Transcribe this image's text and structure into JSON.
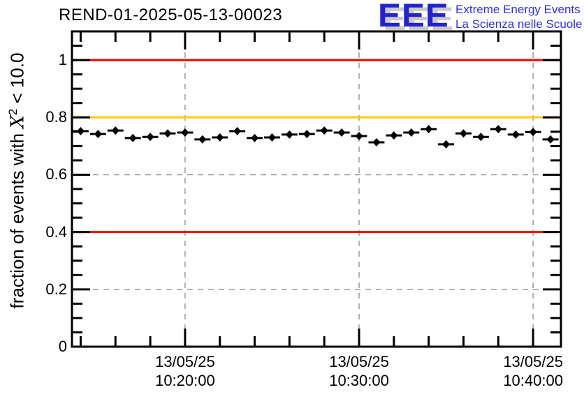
{
  "title": "REND-01-2025-05-13-00023",
  "logo": {
    "acronym": "EEE",
    "line1": "Extreme Energy Events",
    "line2": "La Scienza nelle Scuole",
    "letters_color": "#2222d2",
    "text_color": "#2e2ef0",
    "shadow_color": "#c9c9c9"
  },
  "chart_data": {
    "type": "scatter",
    "title": "REND-01-2025-05-13-00023",
    "ylabel": "fraction of events with X^2 < 10.0",
    "ylabel_parts": {
      "prefix": "fraction of events with ",
      "symbol": "X",
      "sup": "2",
      "suffix": " < 10.0"
    },
    "ylim": [
      0,
      1.1
    ],
    "y_major_tick_step": 0.2,
    "y_minor_tick_step": 0.05,
    "y_ticks": [
      {
        "value": 0,
        "label": "0"
      },
      {
        "value": 0.2,
        "label": "0.2"
      },
      {
        "value": 0.4,
        "label": "0.4"
      },
      {
        "value": 0.6,
        "label": "0.6"
      },
      {
        "value": 0.8,
        "label": "0.8"
      },
      {
        "value": 1,
        "label": "1"
      }
    ],
    "xlim_minutes": [
      13.5,
      41.6
    ],
    "x_minor_tick_step_minutes": 2,
    "x_ticks": [
      {
        "minutes": 20,
        "date": "13/05/25",
        "time": "10:20:00"
      },
      {
        "minutes": 30,
        "date": "13/05/25",
        "time": "10:30:00"
      },
      {
        "minutes": 40,
        "date": "13/05/25",
        "time": "10:40:00"
      }
    ],
    "grid": {
      "show": true,
      "color": "#9a9a9a",
      "style": "dashed"
    },
    "reference_lines": [
      {
        "y": 1.0,
        "color": "#ff0000"
      },
      {
        "y": 0.8,
        "color": "#ffc800"
      },
      {
        "y": 0.4,
        "color": "#ff0000"
      }
    ],
    "series": [
      {
        "name": "fraction of events with chi2 < 10.0",
        "marker": "filled-diamond",
        "color": "#000000",
        "x_error_minutes": 0.5,
        "points": [
          {
            "time": "10:14:00",
            "minutes": 14,
            "value": 0.752
          },
          {
            "time": "10:15:00",
            "minutes": 15,
            "value": 0.742
          },
          {
            "time": "10:16:00",
            "minutes": 16,
            "value": 0.754
          },
          {
            "time": "10:17:00",
            "minutes": 17,
            "value": 0.728
          },
          {
            "time": "10:18:00",
            "minutes": 18,
            "value": 0.732
          },
          {
            "time": "10:19:00",
            "minutes": 19,
            "value": 0.744
          },
          {
            "time": "10:20:00",
            "minutes": 20,
            "value": 0.747
          },
          {
            "time": "10:21:00",
            "minutes": 21,
            "value": 0.723
          },
          {
            "time": "10:22:00",
            "minutes": 22,
            "value": 0.73
          },
          {
            "time": "10:23:00",
            "minutes": 23,
            "value": 0.752
          },
          {
            "time": "10:24:00",
            "minutes": 24,
            "value": 0.728
          },
          {
            "time": "10:25:00",
            "minutes": 25,
            "value": 0.73
          },
          {
            "time": "10:26:00",
            "minutes": 26,
            "value": 0.74
          },
          {
            "time": "10:27:00",
            "minutes": 27,
            "value": 0.742
          },
          {
            "time": "10:28:00",
            "minutes": 28,
            "value": 0.754
          },
          {
            "time": "10:29:00",
            "minutes": 29,
            "value": 0.747
          },
          {
            "time": "10:30:00",
            "minutes": 30,
            "value": 0.735
          },
          {
            "time": "10:31:00",
            "minutes": 31,
            "value": 0.713
          },
          {
            "time": "10:32:00",
            "minutes": 32,
            "value": 0.737
          },
          {
            "time": "10:33:00",
            "minutes": 33,
            "value": 0.747
          },
          {
            "time": "10:34:00",
            "minutes": 34,
            "value": 0.759
          },
          {
            "time": "10:35:00",
            "minutes": 35,
            "value": 0.706
          },
          {
            "time": "10:36:00",
            "minutes": 36,
            "value": 0.744
          },
          {
            "time": "10:37:00",
            "minutes": 37,
            "value": 0.732
          },
          {
            "time": "10:38:00",
            "minutes": 38,
            "value": 0.759
          },
          {
            "time": "10:39:00",
            "minutes": 39,
            "value": 0.74
          },
          {
            "time": "10:40:00",
            "minutes": 40,
            "value": 0.749
          },
          {
            "time": "10:41:00",
            "minutes": 41,
            "value": 0.723
          }
        ]
      }
    ]
  }
}
